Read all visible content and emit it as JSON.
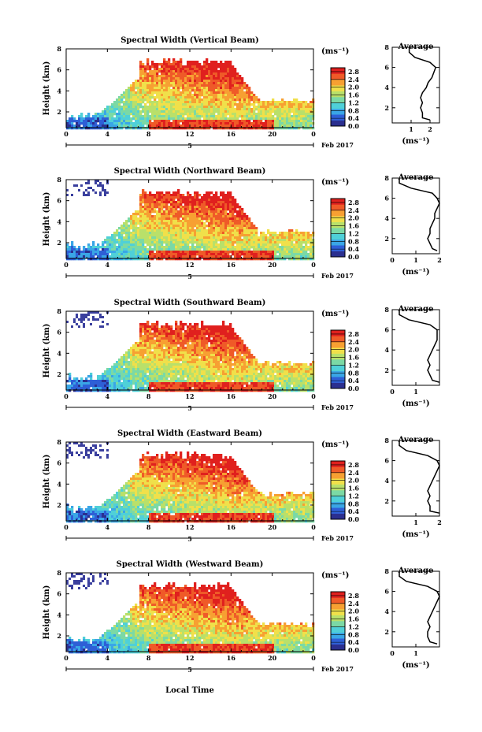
{
  "figure": {
    "xlabel": "Local Time",
    "date_label": "Feb 2017",
    "date_tick": "5",
    "colorbar_unit": "(ms⁻¹)",
    "colorbar_ticks": [
      "0.0",
      "0.4",
      "0.8",
      "1.2",
      "1.6",
      "2.0",
      "2.4",
      "2.8"
    ],
    "colorbar_range": [
      0.0,
      3.0
    ],
    "colormap": [
      "#2b2f8f",
      "#2e5fd6",
      "#3aa6e6",
      "#4fd0d8",
      "#7bd9a5",
      "#b9e06a",
      "#f0e04a",
      "#f7a032",
      "#ef5a28",
      "#e0201e"
    ],
    "profile_title": "Average",
    "profile_xlabel": "(ms⁻¹)"
  },
  "chart_data": [
    {
      "type": "heatmap",
      "title": "Spectral Width (Vertical Beam)",
      "xlabel": "",
      "ylabel": "Height (km)",
      "x_ticks": [
        "0",
        "4",
        "8",
        "12",
        "16",
        "20",
        "0"
      ],
      "x_range_hours": [
        0,
        24
      ],
      "y_ticks": [
        "2",
        "4",
        "6",
        "8"
      ],
      "y_range_km": [
        0.5,
        8
      ],
      "profile": {
        "x_ticks": [
          "1",
          "2"
        ],
        "x_range": [
          0,
          2.5
        ],
        "y_ticks": [
          "2",
          "4",
          "6",
          "8"
        ],
        "height_km": [
          0.8,
          1.0,
          1.5,
          2.0,
          2.5,
          3.0,
          3.5,
          4.0,
          4.5,
          5.0,
          5.5,
          6.0,
          6.5,
          7.0,
          7.5,
          8.0
        ],
        "width_ms": [
          2.0,
          1.6,
          1.6,
          1.5,
          1.6,
          1.5,
          1.6,
          1.8,
          1.9,
          2.1,
          2.2,
          2.3,
          2.0,
          1.2,
          0.9,
          0.9
        ]
      }
    },
    {
      "type": "heatmap",
      "title": "Spectral Width (Northward Beam)",
      "xlabel": "",
      "ylabel": "Height (km)",
      "x_ticks": [
        "0",
        "4",
        "8",
        "12",
        "16",
        "20",
        "0"
      ],
      "x_range_hours": [
        0,
        24
      ],
      "y_ticks": [
        "2",
        "4",
        "6",
        "8"
      ],
      "y_range_km": [
        0.5,
        8
      ],
      "profile": {
        "x_ticks": [
          "0",
          "1",
          "2"
        ],
        "x_range": [
          0,
          2
        ],
        "y_ticks": [
          "2",
          "4",
          "6",
          "8"
        ],
        "height_km": [
          0.8,
          1.0,
          1.5,
          2.0,
          2.5,
          3.0,
          3.5,
          4.0,
          4.5,
          5.0,
          5.5,
          6.0,
          6.5,
          7.0,
          7.5,
          8.0
        ],
        "width_ms": [
          1.9,
          1.7,
          1.6,
          1.5,
          1.6,
          1.6,
          1.7,
          1.8,
          1.8,
          1.9,
          2.0,
          1.9,
          1.7,
          0.8,
          0.3,
          0.3
        ]
      }
    },
    {
      "type": "heatmap",
      "title": "Spectral Width (Southward Beam)",
      "xlabel": "",
      "ylabel": "Height (km)",
      "x_ticks": [
        "0",
        "4",
        "8",
        "12",
        "16",
        "20",
        "0"
      ],
      "x_range_hours": [
        0,
        24
      ],
      "y_ticks": [
        "2",
        "4",
        "6",
        "8"
      ],
      "y_range_km": [
        0.5,
        8
      ],
      "profile": {
        "x_ticks": [
          "0",
          "1"
        ],
        "x_range": [
          0,
          2
        ],
        "y_ticks": [
          "2",
          "4",
          "6",
          "8"
        ],
        "height_km": [
          0.8,
          1.0,
          1.5,
          2.0,
          2.5,
          3.0,
          3.5,
          4.0,
          4.5,
          5.0,
          5.5,
          6.0,
          6.5,
          7.0,
          7.5,
          8.0
        ],
        "width_ms": [
          2.0,
          1.7,
          1.6,
          1.5,
          1.6,
          1.5,
          1.6,
          1.7,
          1.8,
          1.9,
          1.9,
          1.9,
          1.6,
          0.7,
          0.3,
          0.3
        ]
      }
    },
    {
      "type": "heatmap",
      "title": "Spectral Width (Eastward Beam)",
      "xlabel": "",
      "ylabel": "Height (km)",
      "x_ticks": [
        "0",
        "4",
        "8",
        "12",
        "16",
        "20",
        "0"
      ],
      "x_range_hours": [
        0,
        24
      ],
      "y_ticks": [
        "2",
        "4",
        "6",
        "8"
      ],
      "y_range_km": [
        0.5,
        8
      ],
      "profile": {
        "x_ticks": [
          "1",
          "2"
        ],
        "x_range": [
          0,
          2
        ],
        "y_ticks": [
          "2",
          "4",
          "6",
          "8"
        ],
        "height_km": [
          0.8,
          1.0,
          1.5,
          2.0,
          2.5,
          3.0,
          3.5,
          4.0,
          4.5,
          5.0,
          5.5,
          6.0,
          6.5,
          7.0,
          7.5,
          8.0
        ],
        "width_ms": [
          2.0,
          1.6,
          1.6,
          1.5,
          1.6,
          1.5,
          1.6,
          1.7,
          1.8,
          1.9,
          2.0,
          1.9,
          1.5,
          0.6,
          0.3,
          0.3
        ]
      }
    },
    {
      "type": "heatmap",
      "title": "Spectral Width (Westward Beam)",
      "xlabel": "Local Time",
      "ylabel": "Height (km)",
      "x_ticks": [
        "0",
        "4",
        "8",
        "12",
        "16",
        "20",
        "0"
      ],
      "x_range_hours": [
        0,
        24
      ],
      "y_ticks": [
        "2",
        "4",
        "6",
        "8"
      ],
      "y_range_km": [
        0.5,
        8
      ],
      "profile": {
        "x_ticks": [
          "0",
          "1"
        ],
        "x_range": [
          0,
          2
        ],
        "y_ticks": [
          "2",
          "4",
          "6",
          "8"
        ],
        "height_km": [
          0.8,
          1.0,
          1.5,
          2.0,
          2.5,
          3.0,
          3.5,
          4.0,
          4.5,
          5.0,
          5.5,
          6.0,
          6.5,
          7.0,
          7.5,
          8.0
        ],
        "width_ms": [
          1.9,
          1.6,
          1.5,
          1.5,
          1.6,
          1.5,
          1.6,
          1.7,
          1.8,
          1.9,
          2.0,
          1.9,
          1.5,
          0.6,
          0.3,
          0.3
        ]
      }
    }
  ]
}
